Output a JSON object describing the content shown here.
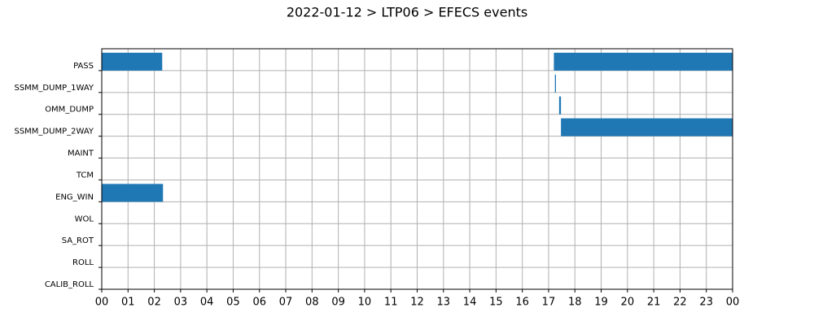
{
  "chart_data": {
    "type": "timeline",
    "title": "2022-01-12 > LTP06 > EFECS events",
    "categories": [
      "PASS",
      "SSMM_DUMP_1WAY",
      "OMM_DUMP",
      "SSMM_DUMP_2WAY",
      "MAINT",
      "TCM",
      "ENG_WIN",
      "WOL",
      "SA_ROT",
      "ROLL",
      "CALIB_ROLL"
    ],
    "spans": [
      [
        [
          0,
          2.3
        ],
        [
          17.2,
          24
        ]
      ],
      [
        [
          17.24,
          17.28
        ]
      ],
      [
        [
          17.4,
          17.47
        ]
      ],
      [
        [
          17.47,
          24
        ]
      ],
      [],
      [],
      [
        [
          0,
          2.33
        ]
      ],
      [],
      [],
      [],
      []
    ],
    "color": "#1f77b4",
    "xlim": [
      0,
      24
    ],
    "xticks": [
      {
        "value": 0,
        "label": "00"
      },
      {
        "value": 1,
        "label": "01"
      },
      {
        "value": 2,
        "label": "02"
      },
      {
        "value": 3,
        "label": "03"
      },
      {
        "value": 4,
        "label": "04"
      },
      {
        "value": 5,
        "label": "05"
      },
      {
        "value": 6,
        "label": "06"
      },
      {
        "value": 7,
        "label": "07"
      },
      {
        "value": 8,
        "label": "08"
      },
      {
        "value": 9,
        "label": "09"
      },
      {
        "value": 10,
        "label": "10"
      },
      {
        "value": 11,
        "label": "11"
      },
      {
        "value": 12,
        "label": "12"
      },
      {
        "value": 13,
        "label": "13"
      },
      {
        "value": 14,
        "label": "14"
      },
      {
        "value": 15,
        "label": "15"
      },
      {
        "value": 16,
        "label": "16"
      },
      {
        "value": 17,
        "label": "17"
      },
      {
        "value": 18,
        "label": "18"
      },
      {
        "value": 19,
        "label": "19"
      },
      {
        "value": 20,
        "label": "20"
      },
      {
        "value": 21,
        "label": "21"
      },
      {
        "value": 22,
        "label": "22"
      },
      {
        "value": 23,
        "label": "23"
      },
      {
        "value": 24,
        "label": "00"
      }
    ],
    "grid": true
  }
}
